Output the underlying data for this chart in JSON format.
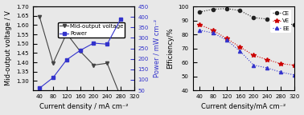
{
  "left": {
    "current_density": [
      40,
      80,
      120,
      160,
      200,
      240,
      280
    ],
    "voltage": [
      1.645,
      1.395,
      1.555,
      1.46,
      1.385,
      1.395,
      1.215
    ],
    "power": [
      60,
      110,
      195,
      240,
      275,
      270,
      390
    ],
    "voltage_color": "#444444",
    "power_color": "#3333cc",
    "ylabel_left": "Mid-output voltage / V",
    "ylabel_right": "Power / mW cm⁻²",
    "xlabel": "Current density / mA cm⁻²",
    "ylim_left": [
      1.25,
      1.7
    ],
    "ylim_right": [
      50,
      450
    ],
    "yticks_left": [
      1.3,
      1.35,
      1.4,
      1.45,
      1.5,
      1.55,
      1.6,
      1.65,
      1.7
    ],
    "yticks_right": [
      50,
      100,
      150,
      200,
      250,
      300,
      350,
      400,
      450
    ],
    "xlim": [
      20,
      320
    ],
    "xticks": [
      40,
      80,
      120,
      160,
      200,
      240,
      280,
      320
    ]
  },
  "right": {
    "current_density": [
      40,
      80,
      120,
      160,
      200,
      240,
      280,
      320
    ],
    "CE": [
      96,
      98,
      98.5,
      97,
      92,
      91,
      88,
      87
    ],
    "VE": [
      87,
      83,
      77,
      71,
      65,
      62,
      59,
      58
    ],
    "EE": [
      83,
      81,
      76,
      68,
      58,
      56,
      53,
      51
    ],
    "CE_color": "#222222",
    "VE_color": "#cc0000",
    "EE_color": "#3333cc",
    "ylabel": "Efficiency/%",
    "xlabel": "Current density/mA cm⁻²",
    "ylim": [
      40,
      100
    ],
    "yticks": [
      40,
      50,
      60,
      70,
      80,
      90,
      100
    ],
    "xlim": [
      20,
      320
    ],
    "xticks": [
      40,
      80,
      120,
      160,
      200,
      240,
      280,
      320
    ]
  },
  "background_color": "#e8e8e8",
  "fontsize": 6
}
